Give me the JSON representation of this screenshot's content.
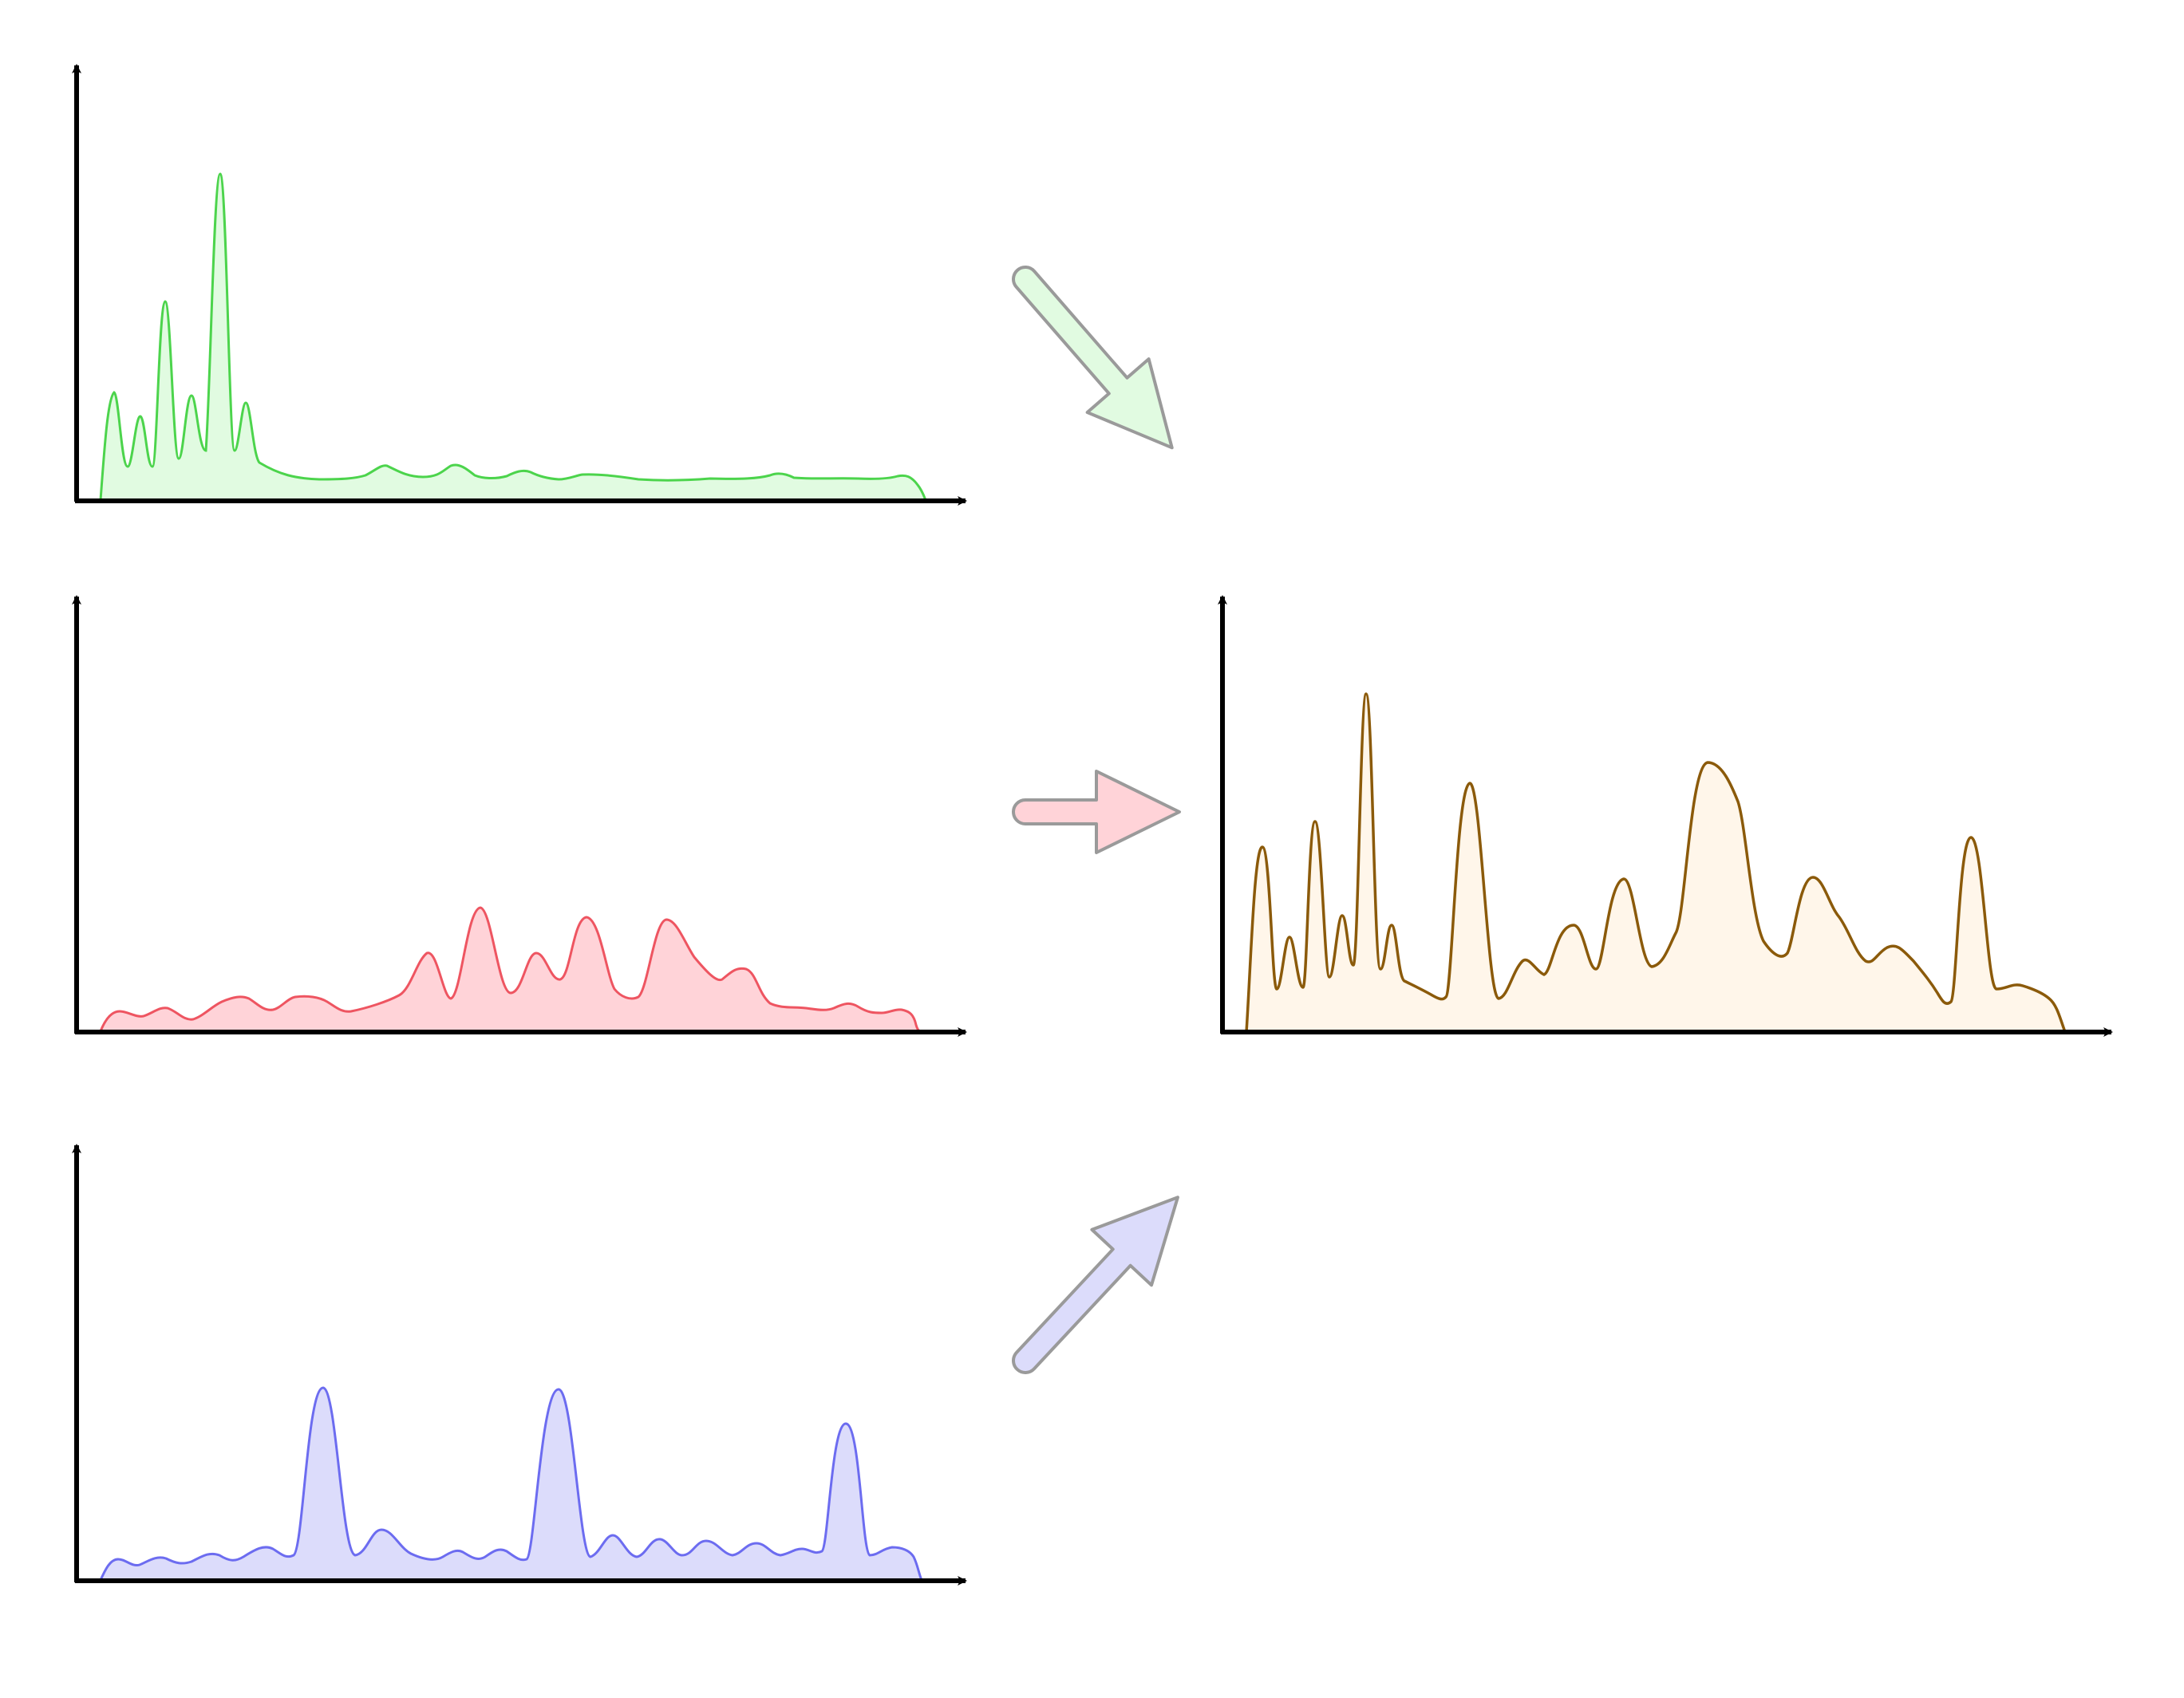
{
  "title": "",
  "colors": {
    "green": "#4cd44c",
    "green_fill": "#e1fbe1",
    "red": "#ee5561",
    "red_fill": "#ffd3d8",
    "blue": "#6c6cf0",
    "blue_fill": "#dcdcfb",
    "combined": "#8b5a0a",
    "combined_fill": "#fff6ea",
    "axis": "#000000",
    "arrow_stroke": "#9a9a9a"
  },
  "panels": [
    {
      "id": "green-spectrum-panel",
      "series": "green",
      "role": "input"
    },
    {
      "id": "red-spectrum-panel",
      "series": "red",
      "role": "input"
    },
    {
      "id": "blue-spectrum-panel",
      "series": "blue",
      "role": "input"
    },
    {
      "id": "combined-spectrum-panel",
      "series": "combined",
      "role": "output"
    }
  ],
  "arrows": [
    {
      "id": "green-arrow",
      "from": "green-spectrum-panel",
      "to": "combined-spectrum-panel",
      "fill": "#e1fbe1"
    },
    {
      "id": "red-arrow",
      "from": "red-spectrum-panel",
      "to": "combined-spectrum-panel",
      "fill": "#ffd3d8"
    },
    {
      "id": "blue-arrow",
      "from": "blue-spectrum-panel",
      "to": "combined-spectrum-panel",
      "fill": "#dcdcfb"
    }
  ]
}
